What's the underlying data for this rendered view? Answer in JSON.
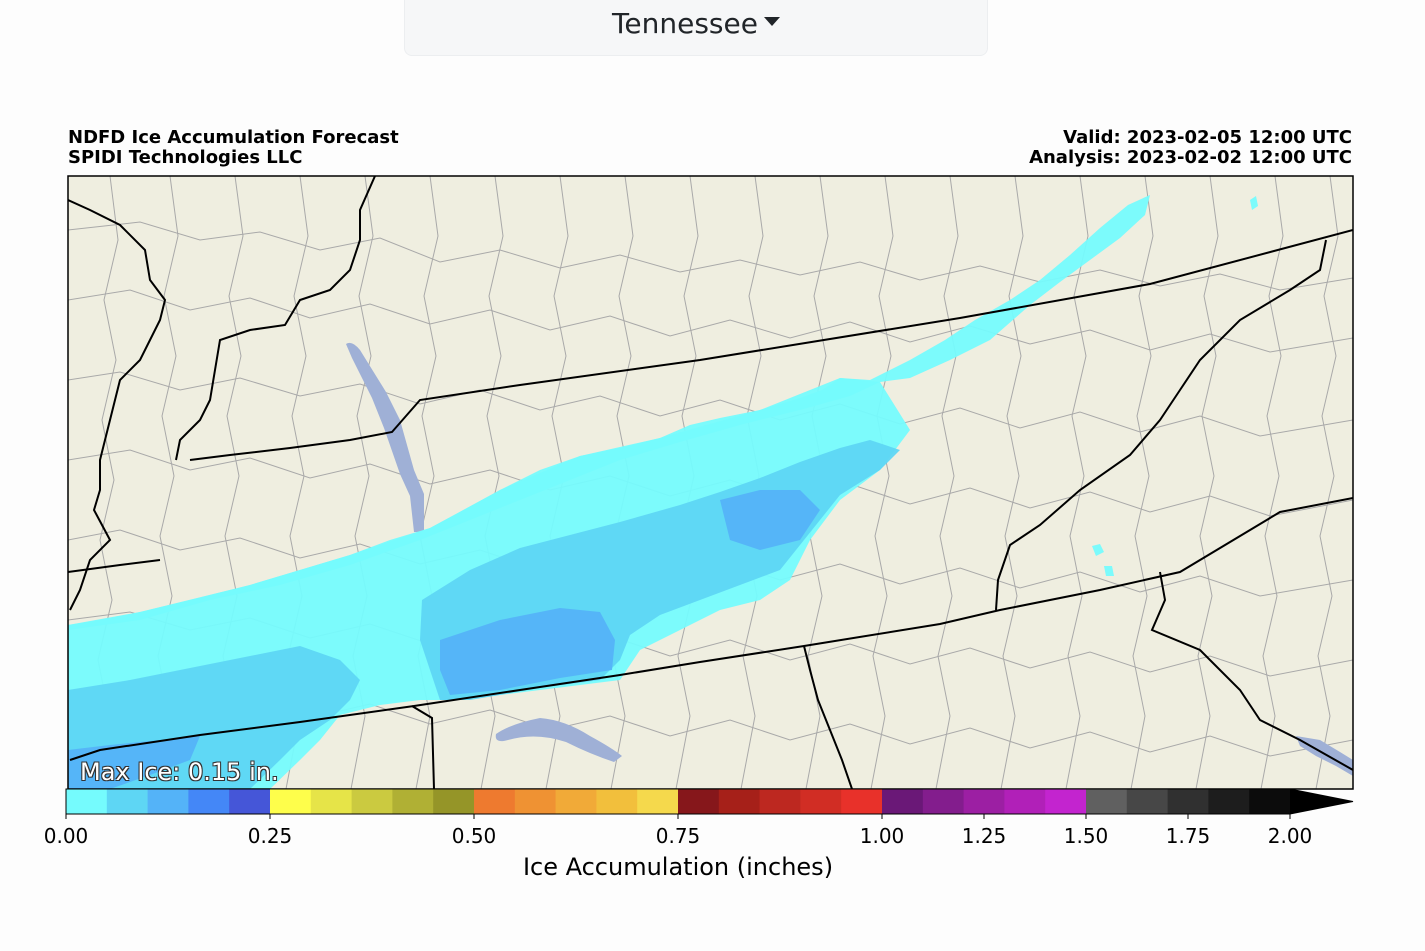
{
  "selector": {
    "label": "Tennessee"
  },
  "header": {
    "title": "NDFD Ice Accumulation Forecast",
    "subtitle": "SPIDI Technologies LLC",
    "valid": "Valid: 2023-02-05 12:00 UTC",
    "analysis": "Analysis: 2023-02-02 12:00 UTC"
  },
  "map": {
    "max_ice_label": "Max Ice: 0.15 in.",
    "land_color": "#efeee0",
    "water_color": "#9fb0d6",
    "ice_colors": [
      "#75fbfd",
      "#5ed6f4",
      "#54b3f8"
    ]
  },
  "colorbar": {
    "title": "Ice Accumulation (inches)",
    "tick_labels": [
      "0.00",
      "0.25",
      "0.50",
      "0.75",
      "1.00",
      "1.25",
      "1.50",
      "1.75",
      "2.00"
    ],
    "colors": [
      "#75fbfd",
      "#5ed6f4",
      "#54b3f8",
      "#4487f7",
      "#4556d8",
      "#fefe4b",
      "#e6e448",
      "#cbca40",
      "#b0b034",
      "#959528",
      "#ee7a2f",
      "#ef9233",
      "#f1aa38",
      "#f2bf3c",
      "#f5d94c",
      "#86171b",
      "#a62019",
      "#bd2820",
      "#d12d24",
      "#e8312a",
      "#6a1877",
      "#831d8d",
      "#9c1fa3",
      "#b120b8",
      "#c324cf",
      "#606060",
      "#474747",
      "#303030",
      "#1d1d1d",
      "#0c0c0c"
    ],
    "extend_color": "#000000"
  }
}
